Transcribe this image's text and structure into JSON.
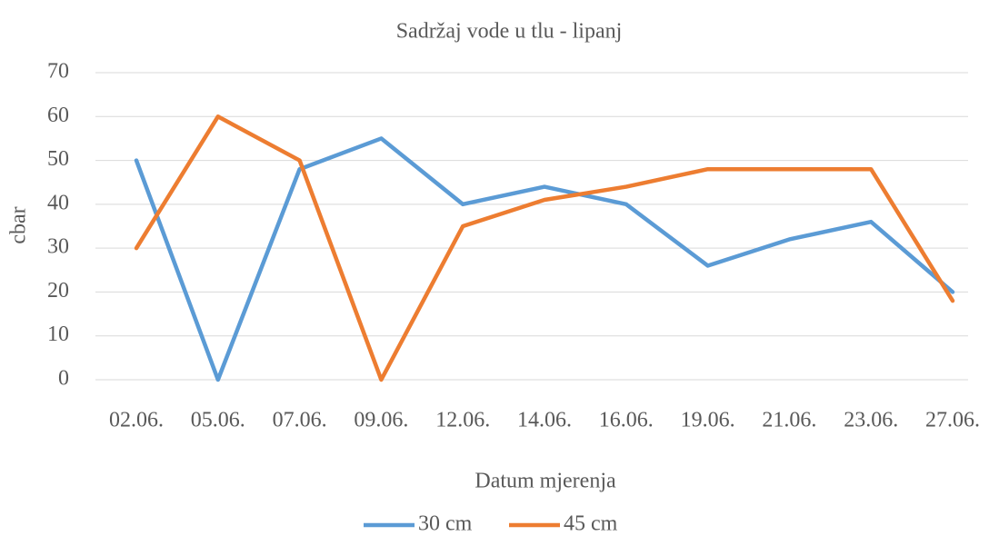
{
  "chart_data": {
    "type": "line",
    "title": "Sadržaj vode u tlu - lipanj",
    "x_label": "Datum mjerenja",
    "y_label": "cbar",
    "categories": [
      "02.06.",
      "05.06.",
      "07.06.",
      "09.06.",
      "12.06.",
      "14.06.",
      "16.06.",
      "19.06.",
      "21.06.",
      "23.06.",
      "27.06."
    ],
    "series": [
      {
        "name": "30 cm",
        "color": "#5b9bd5",
        "values": [
          50,
          0,
          48,
          55,
          40,
          44,
          40,
          26,
          32,
          36,
          20
        ]
      },
      {
        "name": "45 cm",
        "color": "#ed7d31",
        "values": [
          30,
          60,
          50,
          0,
          35,
          41,
          44,
          48,
          48,
          48,
          18
        ]
      }
    ],
    "ylim": [
      0,
      70
    ],
    "yticks": [
      0,
      10,
      20,
      30,
      40,
      50,
      60,
      70
    ],
    "grid": true,
    "legend": "bottom"
  }
}
